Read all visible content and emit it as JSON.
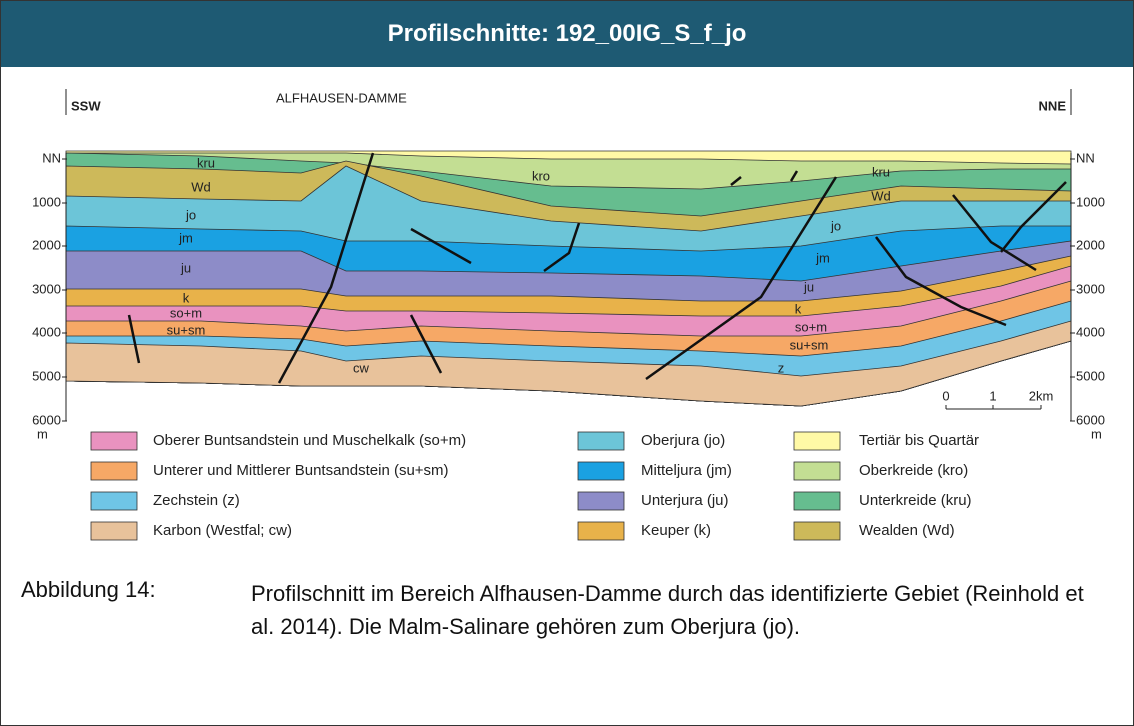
{
  "header": {
    "title": "Profilschnitte: 192_00IG_S_f_jo"
  },
  "figure": {
    "title": "ALFHAUSEN-DAMME",
    "left_direction": "SSW",
    "right_direction": "NNE",
    "depth_labels": [
      "NN",
      "1000",
      "2000",
      "3000",
      "4000",
      "5000",
      "6000"
    ],
    "depth_unit": "m",
    "scale_labels": [
      "0",
      "1",
      "2km"
    ],
    "unit_labels": [
      "kru",
      "Wd",
      "jo",
      "jm",
      "ju",
      "k",
      "so+m",
      "su+sm",
      "cw",
      "kro",
      "kru",
      "Wd",
      "jo",
      "jm",
      "ju",
      "k",
      "so+m",
      "su+sm",
      "z"
    ],
    "legend": [
      {
        "label": "Oberer Buntsandstein und Muschelkalk (so+m)",
        "color": "#e992bf"
      },
      {
        "label": "Unterer und Mittlerer Buntsandstein (su+sm)",
        "color": "#f6a866"
      },
      {
        "label": "Zechstein (z)",
        "color": "#6fc5e6"
      },
      {
        "label": "Karbon (Westfal; cw)",
        "color": "#e8c29b"
      },
      {
        "label": "Oberjura (jo)",
        "color": "#6cc5d8"
      },
      {
        "label": "Mitteljura (jm)",
        "color": "#1aa1e2"
      },
      {
        "label": "Unterjura (ju)",
        "color": "#8d8cc8"
      },
      {
        "label": "Keuper (k)",
        "color": "#e8b24a"
      },
      {
        "label": "Tertiär bis Quartär",
        "color": "#fff9a6"
      },
      {
        "label": "Oberkreide (kro)",
        "color": "#c3de93"
      },
      {
        "label": "Unterkreide (kru)",
        "color": "#66bd8f"
      },
      {
        "label": "Wealden (Wd)",
        "color": "#cdb95a"
      }
    ]
  },
  "caption": {
    "label": "Abbildung 14:",
    "text": "Profilschnitt im Bereich Alfhausen-Damme durch das identifizierte Gebiet (Reinhold et al. 2014). Die Malm-Salinare gehören zum Oberjura (jo)."
  }
}
